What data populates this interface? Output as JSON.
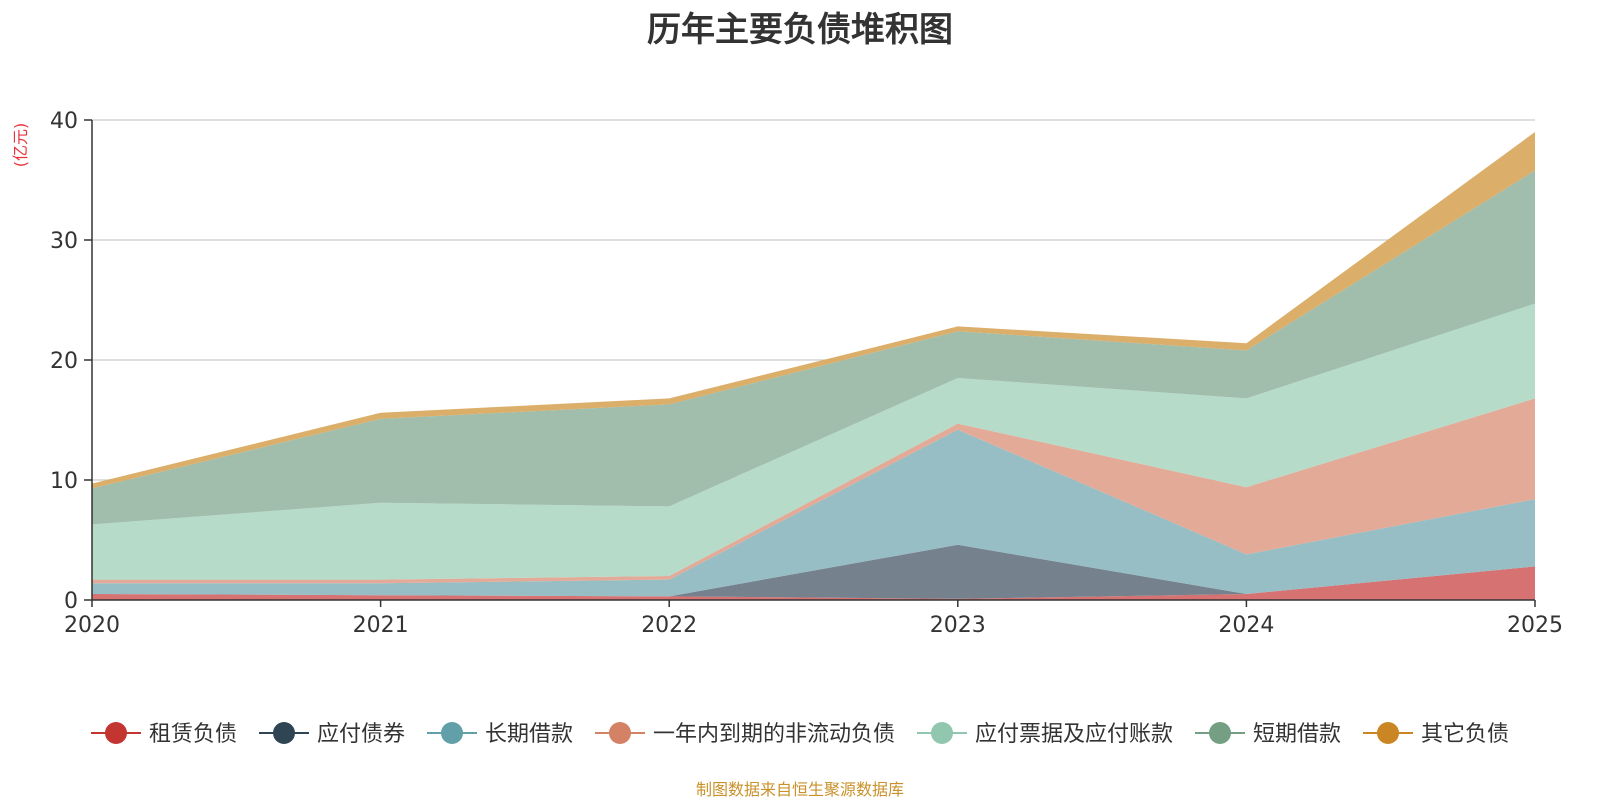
{
  "chart_data": {
    "type": "area",
    "stacked": true,
    "title": "历年主要负债堆积图",
    "ylabel": "(亿元)",
    "x": [
      "2020",
      "2021",
      "2022",
      "2023",
      "2024",
      "2025"
    ],
    "ylim": [
      0,
      40
    ],
    "yticks": [
      "0",
      "10",
      "20",
      "30",
      "40"
    ],
    "grid": true,
    "legend_position": "bottom",
    "series": [
      {
        "name": "租赁负债",
        "color": "#d46a6a",
        "values": [
          0.5,
          0.4,
          0.3,
          0.1,
          0.5,
          2.8
        ]
      },
      {
        "name": "应付债券",
        "color": "#6e7b87",
        "values": [
          0,
          0,
          0,
          4.5,
          0,
          0
        ]
      },
      {
        "name": "长期借款",
        "color": "#91bbc2",
        "values": [
          0.9,
          1.0,
          1.4,
          9.6,
          3.3,
          5.6
        ]
      },
      {
        "name": "一年内到期的非流动负债",
        "color": "#e0a591",
        "values": [
          0.3,
          0.3,
          0.3,
          0.5,
          5.6,
          8.4
        ]
      },
      {
        "name": "应付票据及应付账款",
        "color": "#b2d9c6",
        "values": [
          4.6,
          6.4,
          5.8,
          3.8,
          7.4,
          7.9
        ]
      },
      {
        "name": "短期借款",
        "color": "#9cb9a6",
        "values": [
          3.0,
          7.0,
          8.5,
          3.9,
          4.0,
          11.1
        ]
      },
      {
        "name": "其它负债",
        "color": "#d9aa62",
        "values": [
          0.4,
          0.5,
          0.5,
          0.4,
          0.6,
          3.2
        ]
      }
    ],
    "legend_icon_colors": [
      "#c23531",
      "#2f4554",
      "#61a0a8",
      "#d48265",
      "#91c7ae",
      "#749f83",
      "#ca8622"
    ],
    "source": "制图数据来自恒生聚源数据库"
  }
}
